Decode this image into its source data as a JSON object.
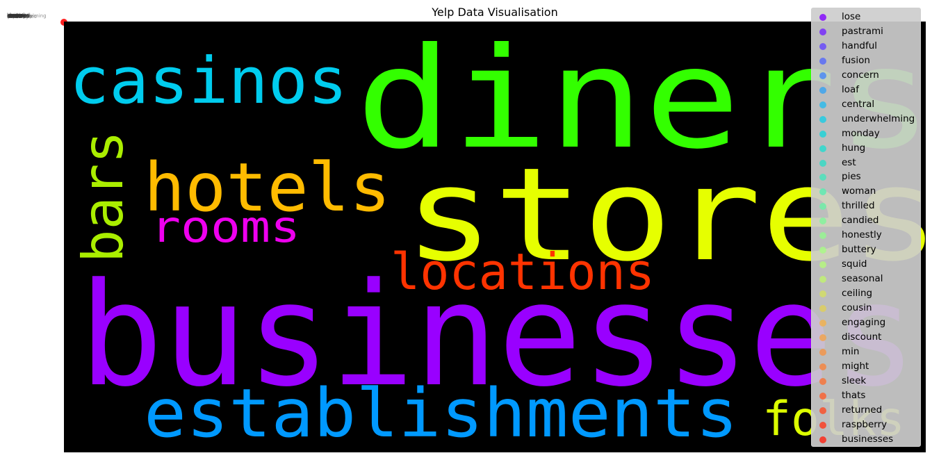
{
  "chart_data": {
    "type": "scatter",
    "title": "Yelp Data Visualisation",
    "legend_placement": "top-right",
    "grid": false,
    "axes_visible": false,
    "wordcloud": [
      {
        "text": "diners",
        "color": "#33ff00"
      },
      {
        "text": "stores",
        "color": "#e6ff00"
      },
      {
        "text": "casinos",
        "color": "#00ccee"
      },
      {
        "text": "hotels",
        "color": "#ffbb00"
      },
      {
        "text": "bars",
        "color": "#aaee00"
      },
      {
        "text": "rooms",
        "color": "#ee00ee"
      },
      {
        "text": "locations",
        "color": "#ff3300"
      },
      {
        "text": "businesses",
        "color": "#9900ff"
      },
      {
        "text": "establishments",
        "color": "#0099ff"
      },
      {
        "text": "folks",
        "color": "#ddff00"
      }
    ],
    "series": [
      {
        "name": "lose",
        "color": "#8000ff"
      },
      {
        "name": "pastrami",
        "color": "#7222ff"
      },
      {
        "name": "handful",
        "color": "#6344fe"
      },
      {
        "name": "fusion",
        "color": "#5366fb"
      },
      {
        "name": "concern",
        "color": "#4486f8"
      },
      {
        "name": "loaf",
        "color": "#34a2f3"
      },
      {
        "name": "central",
        "color": "#26baed"
      },
      {
        "name": "underwhelming",
        "color": "#18cde6"
      },
      {
        "name": "monday",
        "color": "#16d4d9"
      },
      {
        "name": "hung",
        "color": "#22dccf"
      },
      {
        "name": "est",
        "color": "#2edcc6"
      },
      {
        "name": "pies",
        "color": "#44e5bb"
      },
      {
        "name": "woman",
        "color": "#58ecb0"
      },
      {
        "name": "thrilled",
        "color": "#6cf1a5"
      },
      {
        "name": "candied",
        "color": "#80f69a"
      },
      {
        "name": "honestly",
        "color": "#94f98f"
      },
      {
        "name": "buttery",
        "color": "#a8fb84"
      },
      {
        "name": "squid",
        "color": "#b4f97a"
      },
      {
        "name": "seasonal",
        "color": "#c0f46e"
      },
      {
        "name": "ceiling",
        "color": "#d4e062"
      },
      {
        "name": "cousin",
        "color": "#e0d058"
      },
      {
        "name": "engaging",
        "color": "#f4b04a"
      },
      {
        "name": "discount",
        "color": "#f4a248"
      },
      {
        "name": "min",
        "color": "#f69242"
      },
      {
        "name": "might",
        "color": "#f8823a"
      },
      {
        "name": "sleek",
        "color": "#fa7032"
      },
      {
        "name": "thats",
        "color": "#fc5e2a"
      },
      {
        "name": "returned",
        "color": "#fd4a22"
      },
      {
        "name": "raspberry",
        "color": "#fe361a"
      },
      {
        "name": "businesses",
        "color": "#ff2212"
      }
    ]
  }
}
